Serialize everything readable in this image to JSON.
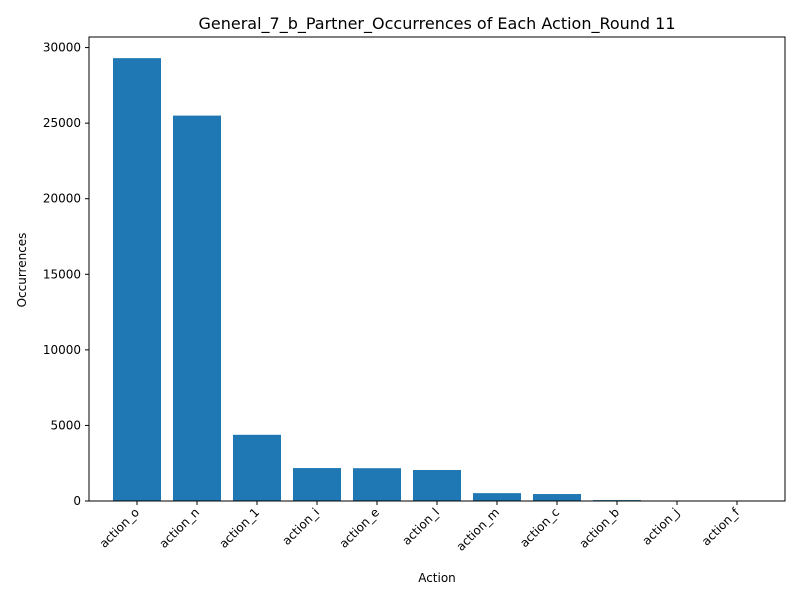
{
  "chart_data": {
    "type": "bar",
    "title": "General_7_b_Partner_Occurrences of Each Action_Round 11",
    "xlabel": "Action",
    "ylabel": "Occurrences",
    "categories": [
      "action_o",
      "action_n",
      "action_1",
      "action_i",
      "action_e",
      "action_l",
      "action_m",
      "action_c",
      "action_b",
      "action_j",
      "action_f"
    ],
    "values": [
      29300,
      25500,
      4380,
      2180,
      2170,
      2050,
      520,
      460,
      60,
      10,
      5
    ],
    "ylim": [
      0,
      30700
    ],
    "yticks": [
      0,
      5000,
      10000,
      15000,
      20000,
      25000,
      30000
    ],
    "ytick_labels": [
      "0",
      "5000",
      "10000",
      "15000",
      "20000",
      "25000",
      "30000"
    ],
    "grid": false,
    "bar_color": "#1f77b4"
  }
}
